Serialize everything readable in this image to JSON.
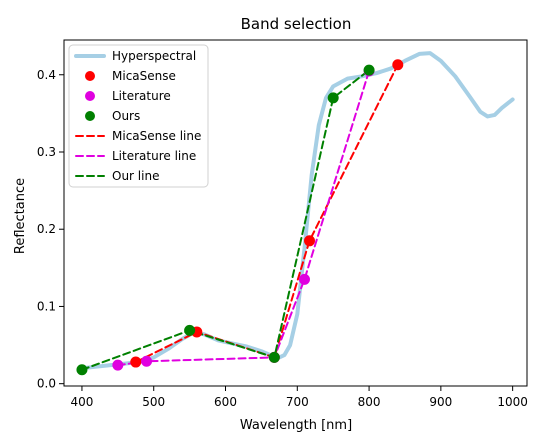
{
  "chart_data": {
    "type": "line",
    "title": "Band selection",
    "xlabel": "Wavelength [nm]",
    "ylabel": "Reflectance",
    "xlim": [
      375,
      1020
    ],
    "ylim": [
      -0.003,
      0.445
    ],
    "x_ticks": [
      400,
      500,
      600,
      700,
      800,
      900,
      1000
    ],
    "y_ticks": [
      0.0,
      0.1,
      0.2,
      0.3,
      0.4
    ],
    "x_tick_labels": [
      "400",
      "500",
      "600",
      "700",
      "800",
      "900",
      "1000"
    ],
    "y_tick_labels": [
      "0.0",
      "0.1",
      "0.2",
      "0.3",
      "0.4"
    ],
    "grid": false,
    "legend_position": "top-left",
    "series": [
      {
        "name": "Hyperspectral",
        "kind": "line",
        "style": "solid",
        "color": "#a6cfe5",
        "x": [
          400,
          420,
          440,
          460,
          480,
          500,
          520,
          540,
          555,
          570,
          590,
          610,
          630,
          650,
          665,
          675,
          682,
          690,
          700,
          710,
          720,
          730,
          740,
          750,
          770,
          790,
          810,
          830,
          850,
          870,
          885,
          900,
          920,
          940,
          955,
          965,
          975,
          985,
          1000
        ],
        "y": [
          0.02,
          0.022,
          0.024,
          0.026,
          0.028,
          0.034,
          0.045,
          0.058,
          0.066,
          0.064,
          0.056,
          0.052,
          0.048,
          0.042,
          0.036,
          0.034,
          0.037,
          0.05,
          0.09,
          0.175,
          0.27,
          0.335,
          0.37,
          0.385,
          0.395,
          0.398,
          0.402,
          0.408,
          0.418,
          0.427,
          0.428,
          0.418,
          0.398,
          0.372,
          0.352,
          0.346,
          0.348,
          0.357,
          0.368
        ]
      },
      {
        "name": "MicaSense",
        "kind": "scatter",
        "color": "#ff0000",
        "x": [
          475,
          560,
          668,
          717,
          840
        ],
        "y": [
          0.028,
          0.067,
          0.034,
          0.185,
          0.413
        ]
      },
      {
        "name": "Literature",
        "kind": "scatter",
        "color": "#e000e0",
        "x": [
          450,
          490,
          668,
          710,
          800
        ],
        "y": [
          0.024,
          0.029,
          0.034,
          0.135,
          0.405
        ]
      },
      {
        "name": "Ours",
        "kind": "scatter",
        "color": "#008000",
        "x": [
          400,
          550,
          668,
          750,
          800
        ],
        "y": [
          0.018,
          0.069,
          0.034,
          0.37,
          0.406
        ]
      },
      {
        "name": "MicaSense line",
        "kind": "line",
        "style": "dashed",
        "color": "#ff0000",
        "x": [
          475,
          560,
          668,
          717,
          840
        ],
        "y": [
          0.028,
          0.067,
          0.034,
          0.185,
          0.413
        ]
      },
      {
        "name": "Literature line",
        "kind": "line",
        "style": "dashed",
        "color": "#e000e0",
        "x": [
          450,
          490,
          668,
          710,
          800
        ],
        "y": [
          0.024,
          0.029,
          0.034,
          0.135,
          0.405
        ]
      },
      {
        "name": "Our line",
        "kind": "line",
        "style": "dashed",
        "color": "#008000",
        "x": [
          400,
          550,
          668,
          750,
          800
        ],
        "y": [
          0.018,
          0.069,
          0.034,
          0.37,
          0.406
        ]
      }
    ]
  }
}
